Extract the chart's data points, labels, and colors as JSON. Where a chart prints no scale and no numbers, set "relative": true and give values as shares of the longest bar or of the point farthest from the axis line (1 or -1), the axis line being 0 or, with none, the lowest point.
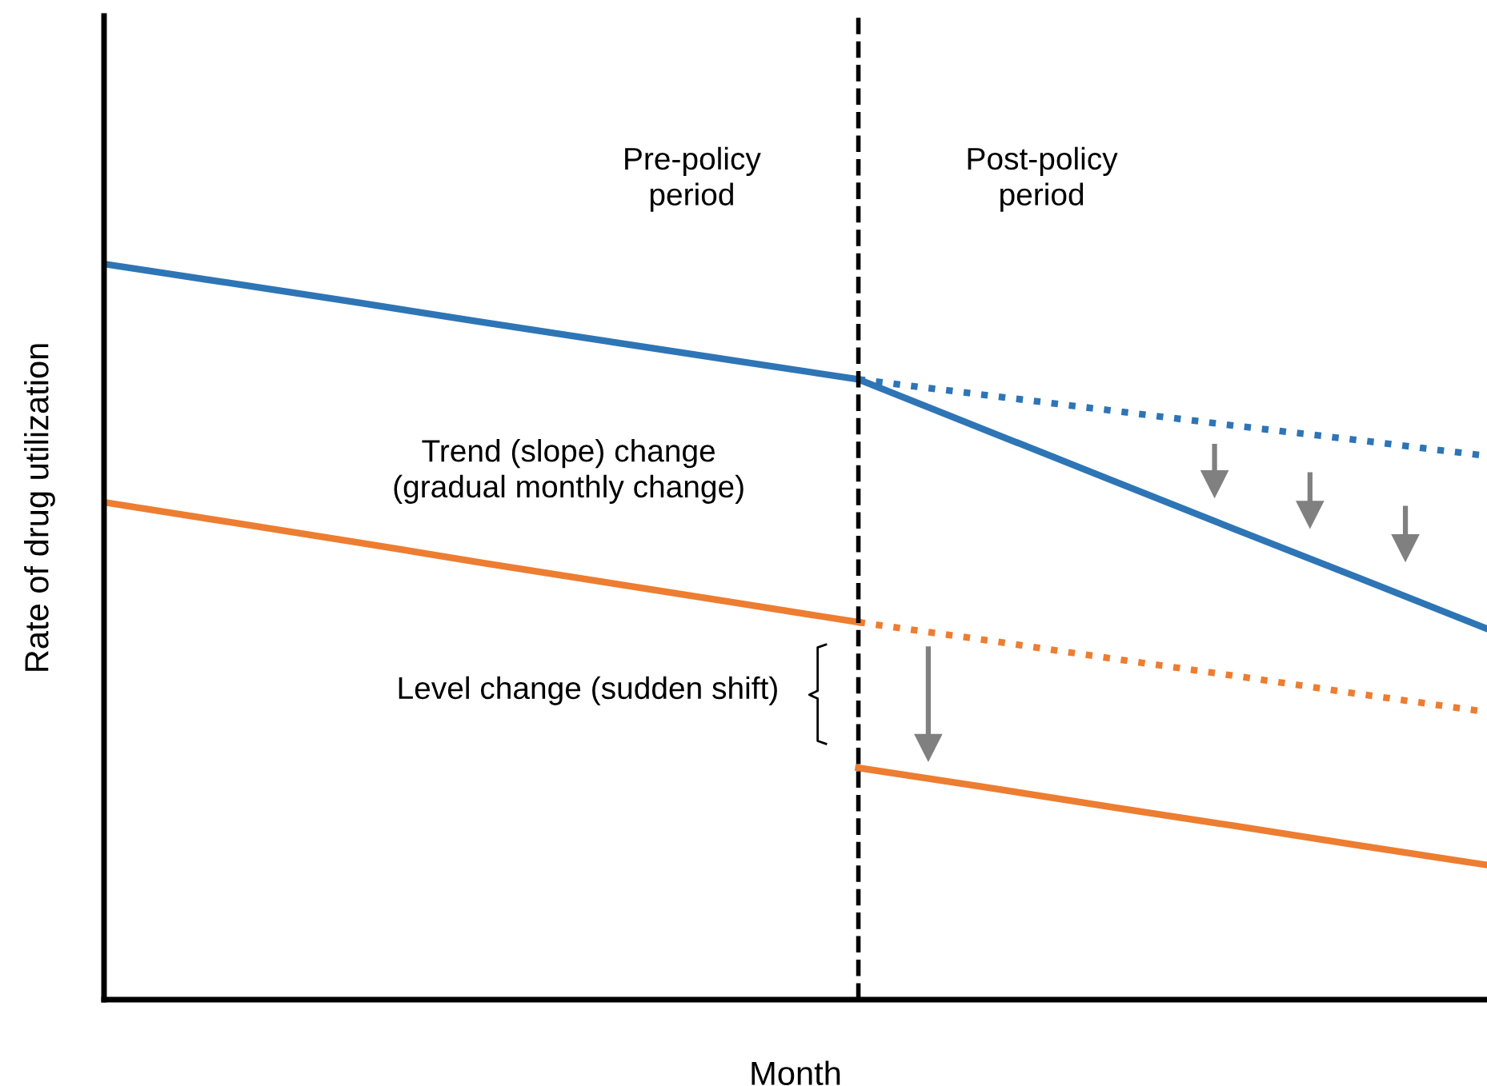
{
  "chart_data": {
    "type": "line",
    "relative": true,
    "xlabel": "Month",
    "ylabel": "Rate of drug utilization",
    "categories": [
      null,
      null,
      null,
      null,
      null,
      null,
      null,
      null,
      null,
      null,
      null,
      null
    ],
    "series": [
      {
        "color": "#2e75b6",
        "values": [
          1,
          0.974,
          0.948,
          0.921,
          0.895,
          0.869,
          0.843,
          0.775,
          0.707,
          0.639,
          0.572,
          0.504
        ],
        "line_style": "solid"
      },
      {
        "color": "#2e75b6",
        "values": [
          null,
          null,
          null,
          null,
          null,
          null,
          0.843,
          0.822,
          0.801,
          0.78,
          0.76,
          0.739
        ],
        "line_style": "dotted"
      },
      {
        "color": "#ed7d31",
        "values": [
          0.676,
          0.649,
          0.622,
          0.594,
          0.567,
          0.54,
          0.513,
          null,
          null,
          null,
          null,
          null
        ],
        "line_style": "solid"
      },
      {
        "color": "#ed7d31",
        "values": [
          null,
          null,
          null,
          null,
          null,
          null,
          0.513,
          0.489,
          0.464,
          0.44,
          0.415,
          0.391
        ],
        "line_style": "dotted"
      },
      {
        "color": "#ed7d31",
        "values": [
          null,
          null,
          null,
          null,
          null,
          null,
          0.315,
          0.289,
          0.262,
          0.236,
          0.209,
          0.183
        ],
        "line_style": "solid"
      }
    ],
    "annotations": [
      "Pre-policy\nperiod",
      "Post-policy\nperiod",
      "Trend (slope) change\n(gradual monthly change)",
      "Level change (sudden shift)"
    ]
  }
}
